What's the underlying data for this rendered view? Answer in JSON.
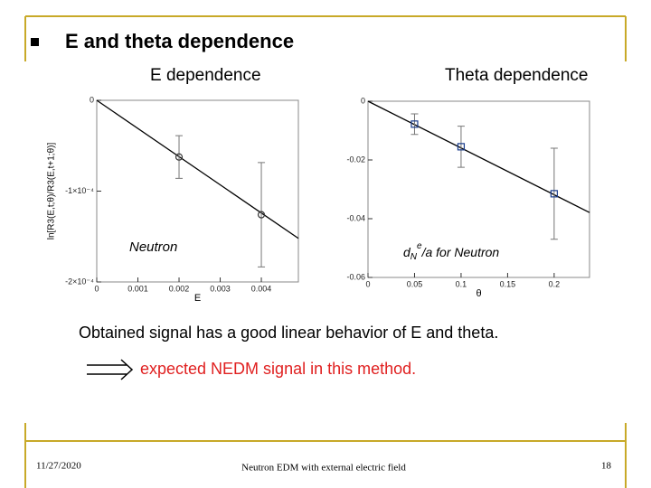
{
  "header": {
    "title": "E and theta dependence"
  },
  "chart_data": [
    {
      "type": "scatter",
      "title": "E dependence",
      "x_label": "E",
      "y_label": "ln[R3(E,t;θ)/R3(E,t+1;θ)]",
      "annotation": "Neutron",
      "xlim": [
        0,
        0.0049
      ],
      "xticks": [
        0,
        0.001,
        0.002,
        0.003,
        0.004
      ],
      "ylim": [
        -0.0002,
        0
      ],
      "yticks": [
        {
          "value": -0.0002,
          "label": "-2×10⁻⁴"
        },
        {
          "value": -0.0001,
          "label": "-1×10⁻⁴"
        },
        0
      ],
      "series": [
        {
          "marker": "circle",
          "color": "#333333",
          "x": [
            0.002,
            0.004
          ],
          "y": [
            -6.24e-05,
            -0.000126
          ],
          "errors": [
            2.35e-05,
            5.75e-05
          ]
        }
      ],
      "fit": {
        "x": [
          0,
          0.0049
        ],
        "y": [
          0,
          -0.000152
        ]
      }
    },
    {
      "type": "scatter",
      "title": "Theta dependence",
      "x_label": "θ",
      "annotation": {
        "d": "d",
        "sub": "N",
        "sup": "e",
        "rest": "/a for Neutron"
      },
      "xlim": [
        0,
        0.238
      ],
      "xticks": [
        0,
        0.05,
        0.1,
        0.15,
        0.2
      ],
      "ylim": [
        -0.06,
        0
      ],
      "yticks": [
        -0.06,
        -0.04,
        -0.02,
        0
      ],
      "series": [
        {
          "marker": "square",
          "color": "#1a3c8c",
          "x": [
            0.05,
            0.1,
            0.2
          ],
          "y": [
            -0.0078,
            -0.0155,
            -0.0315
          ],
          "errors": [
            0.0035,
            0.007,
            0.0155
          ]
        }
      ],
      "fit": {
        "x": [
          0,
          0.238
        ],
        "y": [
          0,
          -0.0379
        ]
      }
    }
  ],
  "body": {
    "statement": "Obtained signal has a good linear behavior of E and theta.",
    "conclusion": "expected NEDM signal in this method."
  },
  "footer": {
    "date": "11/27/2020",
    "center": "Neutron EDM with external electric field",
    "page": "18"
  }
}
